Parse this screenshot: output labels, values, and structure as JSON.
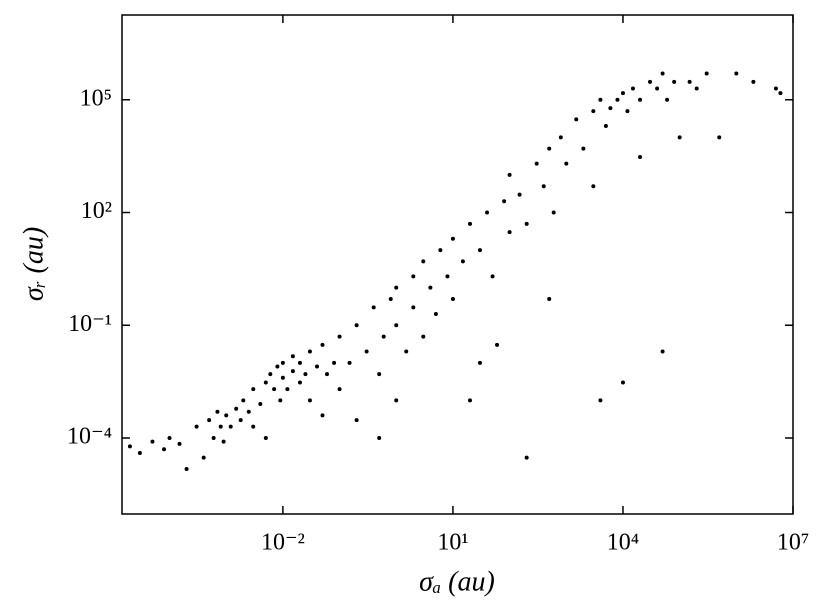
{
  "chart_data": {
    "type": "scatter",
    "xlabel": "σₐ (au)",
    "ylabel": "σᵣ (au)",
    "log_x": true,
    "log_y": true,
    "grid": false,
    "xlim": [
      1.45e-05,
      10000000.0
    ],
    "ylim": [
      9.5e-07,
      18000000.0
    ],
    "xticks": [
      {
        "value": 0.01,
        "label": "10⁻²"
      },
      {
        "value": 10,
        "label": "10¹"
      },
      {
        "value": 10000,
        "label": "10⁴"
      },
      {
        "value": 10000000,
        "label": "10⁷"
      }
    ],
    "yticks": [
      {
        "value": 0.0001,
        "label": "10⁻⁴"
      },
      {
        "value": 0.1,
        "label": "10⁻¹"
      },
      {
        "value": 100,
        "label": "10²"
      },
      {
        "value": 100000,
        "label": "10⁵"
      }
    ],
    "series": [
      {
        "color": "#000000",
        "x": [
          2e-05,
          3e-05,
          5e-05,
          8e-05,
          0.0001,
          0.00015,
          0.0002,
          0.0003,
          0.0004,
          0.0005,
          0.0006,
          0.0007,
          0.0008,
          0.0009,
          0.001,
          0.0012,
          0.0015,
          0.0018,
          0.002,
          0.0025,
          0.003,
          0.003,
          0.004,
          0.005,
          0.005,
          0.006,
          0.007,
          0.008,
          0.009,
          0.01,
          0.01,
          0.012,
          0.015,
          0.015,
          0.02,
          0.02,
          0.025,
          0.03,
          0.03,
          0.04,
          0.05,
          0.05,
          0.06,
          0.08,
          0.1,
          0.1,
          0.15,
          0.2,
          0.2,
          0.3,
          0.4,
          0.5,
          0.6,
          0.8,
          1,
          1,
          1.5,
          2,
          2,
          3,
          3,
          4,
          5,
          6,
          8,
          10,
          10,
          15,
          20,
          20,
          30,
          40,
          50,
          60,
          80,
          100,
          100,
          150,
          200,
          300,
          400,
          500,
          600,
          800,
          1000,
          1500,
          2000,
          3000,
          3000,
          4000,
          5000,
          6000,
          8000,
          10000,
          12000,
          15000,
          20000,
          20000,
          30000,
          40000,
          50000,
          60000,
          80000,
          100000,
          150000,
          200000,
          300000,
          500000,
          1000000,
          2000000,
          5000000,
          6000000,
          50000,
          10000,
          200,
          4000,
          500,
          30,
          1,
          0.5
        ],
        "values": [
          6e-05,
          4e-05,
          8e-05,
          5e-05,
          0.0001,
          7e-05,
          1.5e-05,
          0.0002,
          3e-05,
          0.0003,
          0.0001,
          0.0005,
          0.0002,
          8e-05,
          0.0004,
          0.0002,
          0.0006,
          0.0003,
          0.001,
          0.0005,
          0.0002,
          0.002,
          0.0008,
          0.003,
          0.0001,
          0.005,
          0.002,
          0.008,
          0.001,
          0.004,
          0.01,
          0.002,
          0.006,
          0.015,
          0.003,
          0.01,
          0.005,
          0.02,
          0.001,
          0.008,
          0.03,
          0.0004,
          0.005,
          0.01,
          0.05,
          0.002,
          0.01,
          0.1,
          0.0003,
          0.02,
          0.3,
          0.005,
          0.05,
          0.5,
          0.1,
          1,
          0.02,
          2,
          0.3,
          0.05,
          5,
          1,
          0.2,
          10,
          2,
          20,
          0.5,
          5,
          50,
          0.001,
          10,
          100,
          2,
          0.03,
          200,
          30,
          1000,
          300,
          50,
          2000,
          500,
          5000,
          100,
          10000,
          2000,
          30000,
          5000,
          50000,
          500,
          100000,
          20000,
          60000,
          100000,
          150000,
          50000,
          200000,
          100000,
          3000,
          300000,
          200000,
          500000,
          100000,
          300000,
          10000,
          300000,
          200000,
          500000,
          10000,
          500000,
          300000,
          200000,
          150000,
          0.02,
          0.003,
          3e-05,
          0.001,
          0.5,
          0.01,
          0.001,
          0.0001
        ]
      }
    ]
  }
}
